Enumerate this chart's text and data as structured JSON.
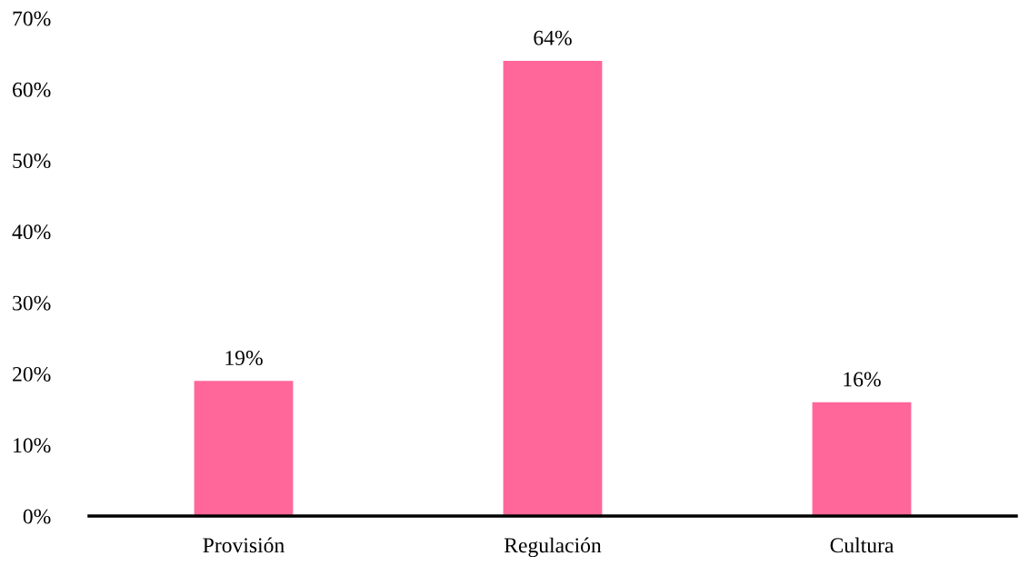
{
  "chart_data": {
    "type": "bar",
    "categories": [
      "Provisión",
      "Regulación",
      "Cultura"
    ],
    "values": [
      19,
      64,
      16
    ],
    "color": "#ff6699",
    "value_labels": [
      "19%",
      "64%",
      "16%"
    ],
    "ylim": [
      0,
      70
    ],
    "yticks": [
      {
        "value": 0,
        "label": "0%"
      },
      {
        "value": 10,
        "label": "10%"
      },
      {
        "value": 20,
        "label": "20%"
      },
      {
        "value": 30,
        "label": "30%"
      },
      {
        "value": 40,
        "label": "40%"
      },
      {
        "value": 50,
        "label": "50%"
      },
      {
        "value": 60,
        "label": "60%"
      },
      {
        "value": 70,
        "label": "70%"
      }
    ],
    "grid": false,
    "legend": false
  }
}
